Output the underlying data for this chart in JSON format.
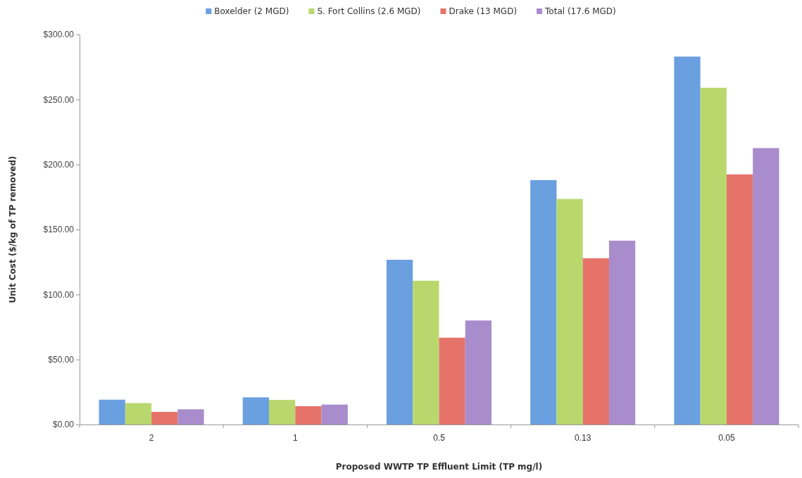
{
  "chart_data": {
    "type": "bar",
    "xlabel": "Proposed WWTP TP Effluent Limit (TP mg/l)",
    "ylabel": "Unit Cost ($/kg of TP removed)",
    "categories": [
      "2",
      "1",
      "0.5",
      "0.13",
      "0.05"
    ],
    "series": [
      {
        "name": "Boxelder (2 MGD)",
        "color": "#6a9fe0",
        "values": [
          19.1,
          20.9,
          126.7,
          188,
          283
        ]
      },
      {
        "name": "S. Fort Collins (2.6 MGD)",
        "color": "#b8d86e",
        "values": [
          16.5,
          18.9,
          110.6,
          173.5,
          259
        ]
      },
      {
        "name": "Drake (13 MGD)",
        "color": "#e5736a",
        "values": [
          9.7,
          14.1,
          66.8,
          127.9,
          192.4
        ]
      },
      {
        "name": "Total (17.6 MGD)",
        "color": "#a88ccb",
        "values": [
          11.7,
          15.3,
          80,
          141.4,
          212.6
        ]
      }
    ],
    "ylim": [
      0,
      300
    ],
    "yticks": [
      {
        "value": 0,
        "label": "$0.00"
      },
      {
        "value": 50,
        "label": "$50.00"
      },
      {
        "value": 100,
        "label": "$100.00"
      },
      {
        "value": 150,
        "label": "$150.00"
      },
      {
        "value": 200,
        "label": "$200.00"
      },
      {
        "value": 250,
        "label": "$250.00"
      },
      {
        "value": 300,
        "label": "$300.00"
      }
    ],
    "legend": "top"
  }
}
